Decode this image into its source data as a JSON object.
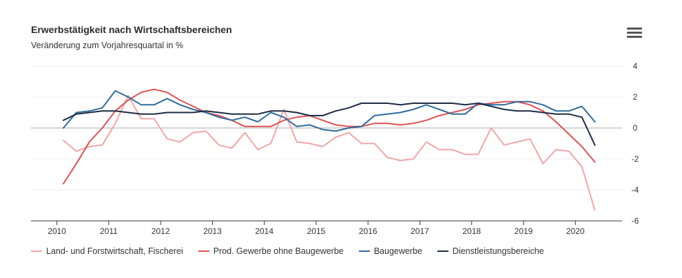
{
  "header": {
    "title": "Erwerbstätigkeit nach Wirtschaftsbereichen",
    "subtitle": "Veränderung zum Vorjahresquartal in %"
  },
  "menu_icon": "hamburger-menu-icon",
  "chart_data": {
    "type": "line",
    "title": "Erwerbstätigkeit nach Wirtschaftsbereichen",
    "subtitle": "Veränderung zum Vorjahresquartal in %",
    "xlabel": "",
    "ylabel": "",
    "xlim": [
      2009.5,
      2020.9
    ],
    "ylim": [
      -6,
      4
    ],
    "x_ticks": [
      2010,
      2011,
      2012,
      2013,
      2014,
      2015,
      2016,
      2017,
      2018,
      2019,
      2020
    ],
    "y_ticks": [
      4,
      2,
      0,
      -2,
      -4,
      -6
    ],
    "y_axis_side": "right",
    "grid": true,
    "legend_position": "bottom-left",
    "x": [
      2010.125,
      2010.375,
      2010.625,
      2010.875,
      2011.125,
      2011.375,
      2011.625,
      2011.875,
      2012.125,
      2012.375,
      2012.625,
      2012.875,
      2013.125,
      2013.375,
      2013.625,
      2013.875,
      2014.125,
      2014.375,
      2014.625,
      2014.875,
      2015.125,
      2015.375,
      2015.625,
      2015.875,
      2016.125,
      2016.375,
      2016.625,
      2016.875,
      2017.125,
      2017.375,
      2017.625,
      2017.875,
      2018.125,
      2018.375,
      2018.625,
      2018.875,
      2019.125,
      2019.375,
      2019.625,
      2019.875,
      2020.125,
      2020.375
    ],
    "series": [
      {
        "name": "Land- und Forstwirtschaft, Fischerei",
        "color": "#f2a5a5",
        "values": [
          -0.8,
          -1.5,
          -1.2,
          -1.1,
          0.3,
          2.1,
          0.6,
          0.6,
          -0.7,
          -0.9,
          -0.3,
          -0.2,
          -1.1,
          -1.3,
          -0.3,
          -1.4,
          -1.0,
          1.2,
          -0.9,
          -1.0,
          -1.2,
          -0.6,
          -0.3,
          -1.0,
          -1.0,
          -1.9,
          -2.1,
          -2.0,
          -0.9,
          -1.4,
          -1.4,
          -1.7,
          -1.7,
          0.0,
          -1.1,
          -0.9,
          -0.7,
          -2.3,
          -1.4,
          -1.5,
          -2.5,
          -5.3
        ]
      },
      {
        "name": "Prod. Gewerbe ohne Baugewerbe",
        "color": "#e05050",
        "values": [
          -3.6,
          -2.3,
          -0.9,
          0.0,
          1.1,
          1.8,
          2.3,
          2.5,
          2.3,
          1.8,
          1.4,
          1.0,
          0.8,
          0.5,
          0.1,
          0.1,
          0.1,
          0.5,
          0.7,
          0.8,
          0.5,
          0.2,
          0.1,
          0.1,
          0.3,
          0.3,
          0.2,
          0.3,
          0.5,
          0.8,
          1.0,
          1.2,
          1.5,
          1.6,
          1.7,
          1.7,
          1.5,
          1.1,
          0.4,
          -0.4,
          -1.2,
          -2.2
        ]
      },
      {
        "name": "Baugewerbe",
        "color": "#2e6a9e",
        "values": [
          0.0,
          1.0,
          1.1,
          1.3,
          2.4,
          2.0,
          1.5,
          1.5,
          1.9,
          1.5,
          1.2,
          1.0,
          0.7,
          0.5,
          0.7,
          0.4,
          1.0,
          0.7,
          0.1,
          0.2,
          -0.1,
          -0.2,
          0.0,
          0.1,
          0.8,
          0.9,
          1.0,
          1.2,
          1.5,
          1.2,
          0.9,
          0.9,
          1.6,
          1.5,
          1.5,
          1.7,
          1.7,
          1.5,
          1.1,
          1.1,
          1.4,
          0.4
        ]
      },
      {
        "name": "Dienstleistungsbereiche",
        "color": "#1c2b45",
        "values": [
          0.5,
          0.9,
          1.0,
          1.1,
          1.1,
          1.0,
          0.9,
          0.9,
          1.0,
          1.0,
          1.0,
          1.1,
          1.0,
          0.9,
          0.9,
          0.9,
          1.1,
          1.1,
          1.0,
          0.8,
          0.8,
          1.1,
          1.3,
          1.6,
          1.6,
          1.6,
          1.5,
          1.6,
          1.6,
          1.6,
          1.6,
          1.5,
          1.6,
          1.4,
          1.2,
          1.1,
          1.1,
          1.0,
          0.9,
          0.9,
          0.7,
          -1.1
        ]
      }
    ]
  }
}
